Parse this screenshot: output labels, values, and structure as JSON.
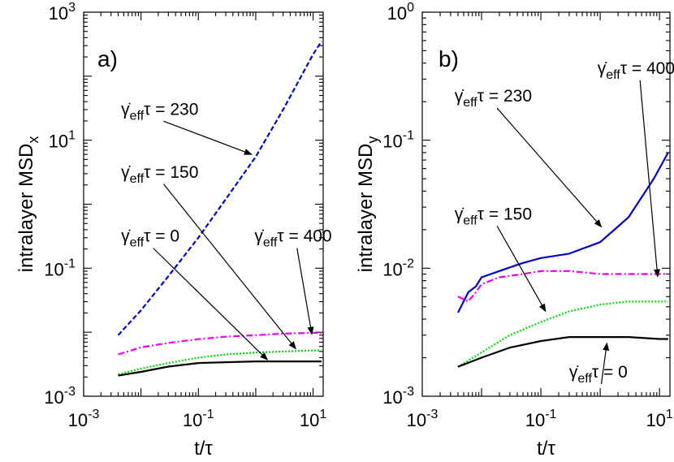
{
  "chart_data": [
    {
      "type": "line",
      "panel_label": "a)",
      "xlabel": "t/τ",
      "ylabel": "intralayer MSD",
      "ylabel_sub": "x",
      "xscale": "log",
      "yscale": "log",
      "xlim": [
        0.001,
        15
      ],
      "ylim": [
        0.001,
        1000
      ],
      "xticks": [
        {
          "base": "10",
          "exp": "-3"
        },
        {
          "base": "10",
          "exp": "-1"
        },
        {
          "base": "10",
          "exp": "1"
        }
      ],
      "yticks": [
        {
          "base": "10",
          "exp": "-3"
        },
        {
          "base": "10",
          "exp": "-1"
        },
        {
          "base": "10",
          "exp": "1"
        },
        {
          "base": "10",
          "exp": "3"
        }
      ],
      "series": [
        {
          "color": "#0000cc",
          "dash": "6,3",
          "x": [
            0.004,
            0.01,
            0.03,
            0.1,
            0.3,
            1,
            3,
            10,
            14
          ],
          "y": [
            0.009,
            0.022,
            0.075,
            0.3,
            1.2,
            5.5,
            30,
            220,
            350
          ]
        },
        {
          "color": "#ee00ee",
          "dash": "8,3,2,3",
          "x": [
            0.004,
            0.01,
            0.03,
            0.1,
            0.3,
            1,
            3,
            10,
            14
          ],
          "y": [
            0.0045,
            0.0058,
            0.0068,
            0.0078,
            0.0085,
            0.009,
            0.0095,
            0.0098,
            0.0098
          ]
        },
        {
          "color": "#00dd00",
          "dash": "2,2",
          "x": [
            0.004,
            0.01,
            0.03,
            0.1,
            0.3,
            1,
            3,
            10,
            14
          ],
          "y": [
            0.0022,
            0.0027,
            0.0033,
            0.004,
            0.0045,
            0.0048,
            0.005,
            0.0052,
            0.0052
          ]
        },
        {
          "color": "#000000",
          "dash": "",
          "x": [
            0.004,
            0.01,
            0.03,
            0.1,
            0.3,
            1,
            3,
            10,
            14
          ],
          "y": [
            0.0021,
            0.0024,
            0.0029,
            0.0033,
            0.0034,
            0.0035,
            0.0035,
            0.0035,
            0.0035
          ]
        }
      ],
      "annotations": [
        {
          "gamma": "γ̇",
          "sub": "eff",
          "rest": "τ = 230",
          "tx": 0.0045,
          "ty": 25,
          "ax": 0.85,
          "ay": 6
        },
        {
          "gamma": "γ̇",
          "sub": "eff",
          "rest": "τ = 150",
          "tx": 0.0045,
          "ty": 2.6,
          "ax": 5.0,
          "ay": 0.0055
        },
        {
          "gamma": "γ̇",
          "sub": "eff",
          "rest": "τ = 0",
          "tx": 0.0045,
          "ty": 0.26,
          "ax": 1.6,
          "ay": 0.0037
        },
        {
          "gamma": "γ̇",
          "sub": "eff",
          "rest": "τ = 400",
          "tx": 0.95,
          "ty": 0.26,
          "ax": 9.5,
          "ay": 0.0093
        }
      ]
    },
    {
      "type": "line",
      "panel_label": "b)",
      "xlabel": "t/τ",
      "ylabel": "intralayer MSD",
      "ylabel_sub": "y",
      "xscale": "log",
      "yscale": "log",
      "xlim": [
        0.001,
        15
      ],
      "ylim": [
        0.001,
        1
      ],
      "xticks": [
        {
          "base": "10",
          "exp": "-3"
        },
        {
          "base": "10",
          "exp": "-1"
        },
        {
          "base": "10",
          "exp": "1"
        }
      ],
      "yticks": [
        {
          "base": "10",
          "exp": "-3"
        },
        {
          "base": "10",
          "exp": "-2"
        },
        {
          "base": "10",
          "exp": "-1"
        },
        {
          "base": "10",
          "exp": "0"
        }
      ],
      "series": [
        {
          "color": "#0000cc",
          "dash": "",
          "x": [
            0.004,
            0.006,
            0.008,
            0.01,
            0.02,
            0.05,
            0.1,
            0.3,
            1,
            3,
            8,
            14
          ],
          "y": [
            0.0045,
            0.0065,
            0.0072,
            0.0085,
            0.0095,
            0.011,
            0.012,
            0.013,
            0.016,
            0.025,
            0.05,
            0.08
          ]
        },
        {
          "color": "#ee00ee",
          "dash": "8,3,2,3",
          "x": [
            0.004,
            0.006,
            0.008,
            0.01,
            0.02,
            0.05,
            0.1,
            0.3,
            1,
            3,
            10,
            14
          ],
          "y": [
            0.006,
            0.0055,
            0.0065,
            0.0075,
            0.0085,
            0.009,
            0.0095,
            0.0095,
            0.009,
            0.009,
            0.009,
            0.009
          ]
        },
        {
          "color": "#00dd00",
          "dash": "2,2",
          "x": [
            0.004,
            0.01,
            0.03,
            0.1,
            0.3,
            1,
            3,
            10,
            14
          ],
          "y": [
            0.0017,
            0.0022,
            0.003,
            0.0038,
            0.0046,
            0.0052,
            0.0055,
            0.0055,
            0.0055
          ]
        },
        {
          "color": "#000000",
          "dash": "",
          "x": [
            0.004,
            0.01,
            0.03,
            0.1,
            0.3,
            1,
            3,
            10,
            14
          ],
          "y": [
            0.0017,
            0.002,
            0.0024,
            0.0027,
            0.0029,
            0.0029,
            0.0029,
            0.0028,
            0.0028
          ]
        }
      ],
      "annotations": [
        {
          "gamma": "γ̇",
          "sub": "eff",
          "rest": "τ = 230",
          "tx": 0.0035,
          "ty": 0.2,
          "ax": 1.05,
          "ay": 0.021
        },
        {
          "gamma": "γ̇",
          "sub": "eff",
          "rest": "τ = 150",
          "tx": 0.0035,
          "ty": 0.024,
          "ax": 0.12,
          "ay": 0.0046
        },
        {
          "gamma": "γ̇",
          "sub": "eff",
          "rest": "τ = 0",
          "tx": 0.3,
          "ty": 0.0014,
          "ax": 1.3,
          "ay": 0.0026
        },
        {
          "gamma": "γ̇",
          "sub": "eff",
          "rest": "τ = 400",
          "tx": 0.9,
          "ty": 0.33,
          "ax": 9.3,
          "ay": 0.0086
        }
      ]
    }
  ]
}
